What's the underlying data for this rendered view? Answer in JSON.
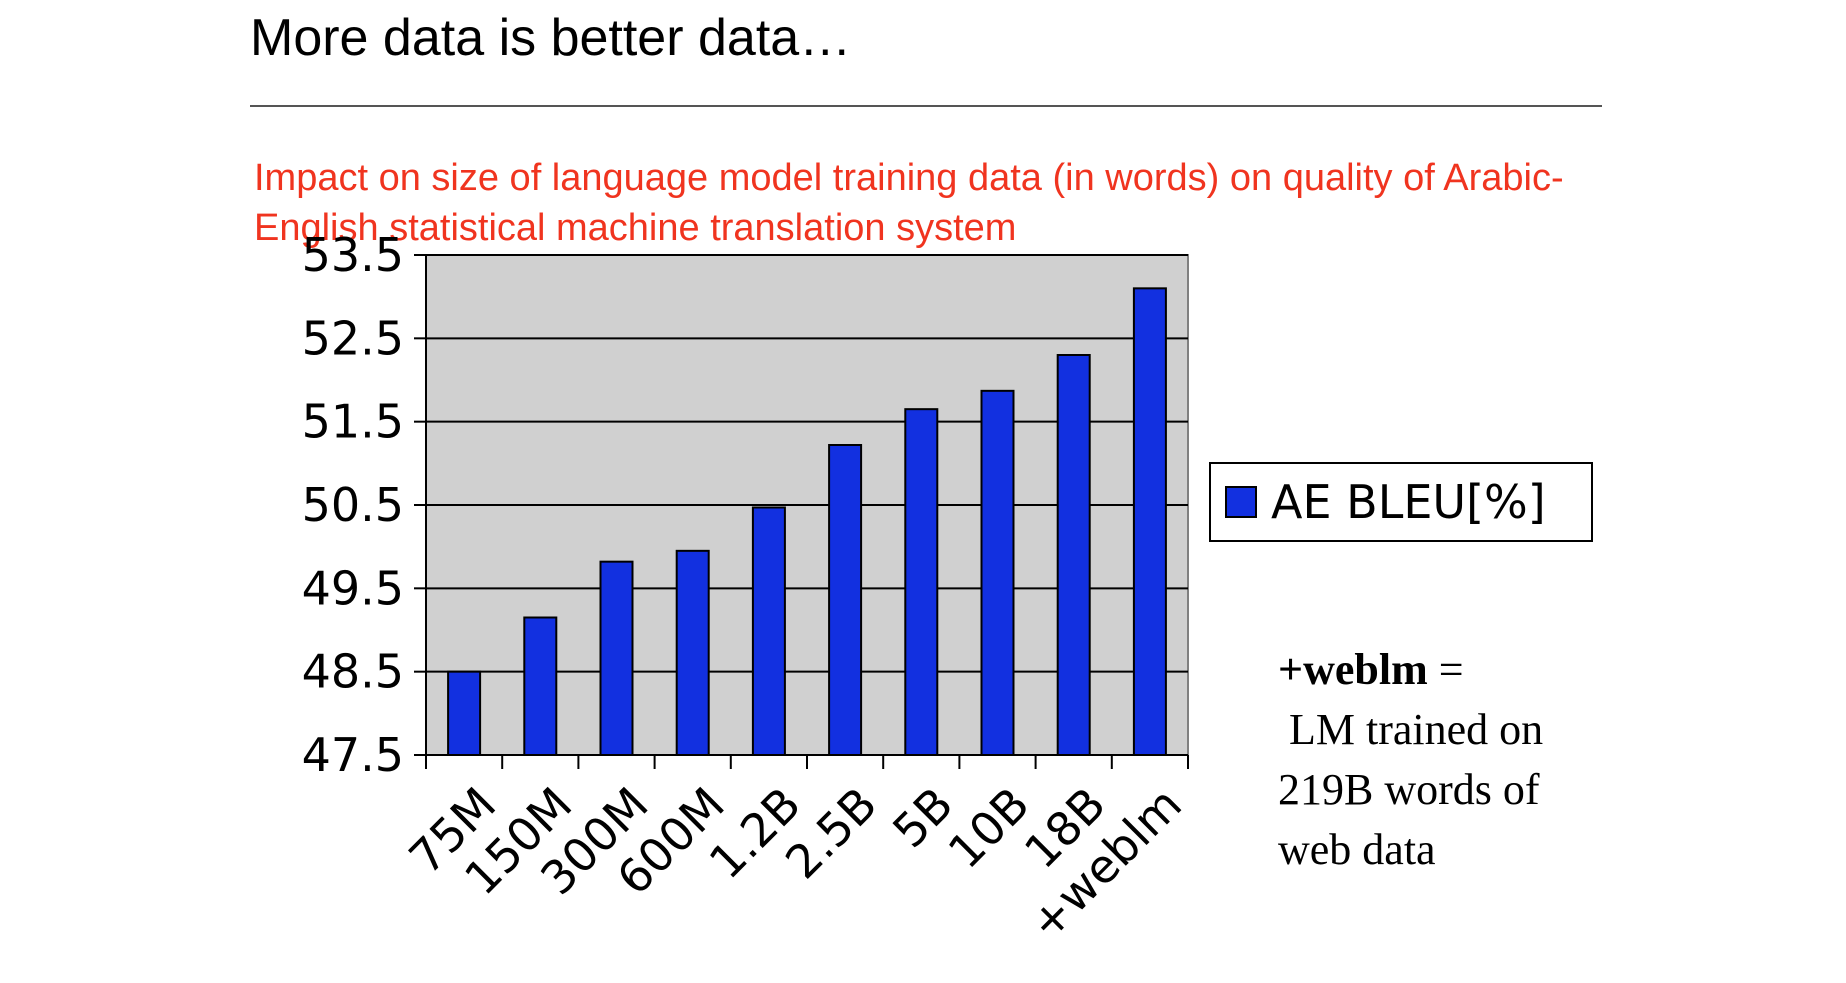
{
  "slide": {
    "title": "More data is better data…"
  },
  "chart_data": {
    "type": "bar",
    "title": "Impact on size of language model training data (in words) on quality of Arabic-English statistical machine translation system",
    "categories": [
      "75M",
      "150M",
      "300M",
      "600M",
      "1.2B",
      "2.5B",
      "5B",
      "10B",
      "18B",
      "+weblm"
    ],
    "series": [
      {
        "name": "AE BLEU[%]",
        "values": [
          48.5,
          49.15,
          49.82,
          49.95,
          50.47,
          51.22,
          51.65,
          51.87,
          52.3,
          53.1
        ]
      }
    ],
    "y_ticks": [
      "47.5",
      "48.5",
      "49.5",
      "50.5",
      "51.5",
      "52.5",
      "53.5"
    ],
    "ylim": [
      47.5,
      53.5
    ],
    "grid": true,
    "legend": "right",
    "colors": {
      "bar": "#1230e0",
      "plot_background": "#d0d0d0",
      "title": "#f0341f"
    }
  },
  "note": {
    "bold": "+weblm",
    "eq": " =",
    "line2": " LM trained on",
    "line3": "219B words of",
    "line4": "web data"
  }
}
